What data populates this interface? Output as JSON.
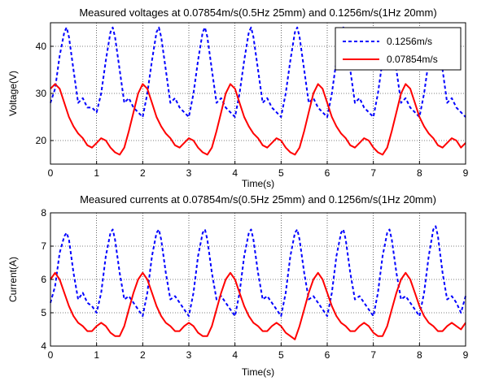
{
  "chart_data": [
    {
      "type": "line",
      "title": "Measured voltages at 0.07854m/s(0.5Hz 25mm) and 0.1256m/s(1Hz 20mm)",
      "xlabel": "Time(s)",
      "ylabel": "Voltage(V)",
      "xlim": [
        0,
        9
      ],
      "ylim": [
        15,
        45
      ],
      "xticks": [
        "0",
        "1",
        "2",
        "3",
        "4",
        "5",
        "6",
        "7",
        "8",
        "9"
      ],
      "yticks": [
        "20",
        "30",
        "40"
      ],
      "grid": true,
      "legend_position": "top-right",
      "series": [
        {
          "name": "0.1256m/s",
          "color": "#0000ff",
          "style": "dashed",
          "x": [
            0,
            0.1,
            0.2,
            0.3,
            0.35,
            0.4,
            0.5,
            0.6,
            0.7,
            0.8,
            0.9,
            1.0,
            1.1,
            1.2,
            1.3,
            1.35,
            1.4,
            1.5,
            1.6,
            1.7,
            1.8,
            1.9,
            2.0,
            2.1,
            2.2,
            2.3,
            2.35,
            2.4,
            2.5,
            2.6,
            2.7,
            2.8,
            2.9,
            3.0,
            3.1,
            3.2,
            3.3,
            3.35,
            3.4,
            3.5,
            3.6,
            3.7,
            3.8,
            3.9,
            4.0,
            4.1,
            4.2,
            4.3,
            4.35,
            4.4,
            4.5,
            4.6,
            4.7,
            4.8,
            4.9,
            5.0,
            5.1,
            5.2,
            5.3,
            5.35,
            5.4,
            5.5,
            5.6,
            5.7,
            5.8,
            5.9,
            6.0,
            6.1,
            6.2,
            6.3,
            6.35,
            6.4,
            6.5,
            6.6,
            6.7,
            6.8,
            6.9,
            7.0,
            7.1,
            7.2,
            7.3,
            7.35,
            7.4,
            7.5,
            7.6,
            7.7,
            7.8,
            7.9,
            8.0,
            8.1,
            8.2,
            8.3,
            8.35,
            8.4,
            8.5,
            8.6,
            8.7,
            8.8,
            8.9,
            9.0
          ],
          "y": [
            28,
            31,
            38,
            43,
            44,
            42,
            35,
            28,
            29,
            27,
            27,
            26,
            30,
            37,
            43,
            44,
            42,
            35,
            28,
            29,
            27,
            26,
            25,
            30,
            37,
            43,
            44,
            42,
            35,
            28,
            29,
            27,
            26,
            25,
            30,
            37,
            43,
            44,
            42,
            35,
            28,
            29,
            27,
            26,
            25,
            30,
            37,
            43,
            44,
            42,
            35,
            28,
            29,
            27,
            26,
            25,
            30,
            37,
            43,
            44,
            42,
            35,
            28,
            29,
            27,
            26,
            25,
            30,
            37,
            43,
            44,
            42,
            35,
            28,
            29,
            27,
            26,
            25,
            30,
            37,
            43,
            44,
            42,
            35,
            28,
            29,
            27,
            26,
            25,
            30,
            37,
            43,
            44,
            42,
            35,
            28,
            29,
            27,
            26,
            25
          ]
        },
        {
          "name": "0.07854m/s",
          "color": "#ff0000",
          "style": "solid",
          "x": [
            0,
            0.1,
            0.2,
            0.3,
            0.4,
            0.5,
            0.6,
            0.7,
            0.8,
            0.9,
            1.0,
            1.1,
            1.2,
            1.3,
            1.4,
            1.5,
            1.6,
            1.7,
            1.8,
            1.9,
            2.0,
            2.1,
            2.2,
            2.3,
            2.4,
            2.5,
            2.6,
            2.7,
            2.8,
            2.9,
            3.0,
            3.1,
            3.2,
            3.3,
            3.4,
            3.5,
            3.6,
            3.7,
            3.8,
            3.9,
            4.0,
            4.1,
            4.2,
            4.3,
            4.4,
            4.5,
            4.6,
            4.7,
            4.8,
            4.9,
            5.0,
            5.1,
            5.2,
            5.3,
            5.4,
            5.5,
            5.6,
            5.7,
            5.8,
            5.9,
            6.0,
            6.1,
            6.2,
            6.3,
            6.4,
            6.5,
            6.6,
            6.7,
            6.8,
            6.9,
            7.0,
            7.1,
            7.2,
            7.3,
            7.4,
            7.5,
            7.6,
            7.7,
            7.8,
            7.9,
            8.0,
            8.1,
            8.2,
            8.3,
            8.4,
            8.5,
            8.6,
            8.7,
            8.8,
            8.9,
            9.0
          ],
          "y": [
            31,
            32,
            31,
            28,
            25,
            23,
            21.5,
            20.5,
            19,
            18.5,
            19.5,
            20.5,
            20,
            18.5,
            17.5,
            17,
            18.5,
            22,
            26,
            30,
            32,
            31,
            28,
            25,
            23,
            21.5,
            20.5,
            19,
            18.5,
            19.5,
            20.5,
            20,
            18.5,
            17.5,
            17,
            18.5,
            22,
            26,
            30,
            32,
            31,
            28,
            25,
            23,
            21.5,
            20.5,
            19,
            18.5,
            19.5,
            20.5,
            20,
            18.5,
            17.5,
            17,
            18.5,
            22,
            26,
            30,
            32,
            31,
            28,
            25,
            23,
            21.5,
            20.5,
            19,
            18.5,
            19.5,
            20.5,
            20,
            18.5,
            17.5,
            17,
            18.5,
            22,
            26,
            30,
            32,
            31,
            28,
            25,
            23,
            21.5,
            20.5,
            19,
            18.5,
            19.5,
            20.5,
            20,
            18.5,
            19.5
          ]
        }
      ]
    },
    {
      "type": "line",
      "title": "Measured currents at 0.07854m/s(0.5Hz 25mm) and 0.1256m/s(1Hz 20mm)",
      "xlabel": "Time(s)",
      "ylabel": "Current(A)",
      "xlim": [
        0,
        9
      ],
      "ylim": [
        4,
        8
      ],
      "xticks": [
        "0",
        "1",
        "2",
        "3",
        "4",
        "5",
        "6",
        "7",
        "8",
        "9"
      ],
      "yticks": [
        "4",
        "5",
        "6",
        "7",
        "8"
      ],
      "grid": true,
      "series": [
        {
          "name": "0.1256m/s",
          "color": "#0000ff",
          "style": "dashed",
          "x": [
            0,
            0.1,
            0.2,
            0.3,
            0.35,
            0.4,
            0.5,
            0.6,
            0.7,
            0.8,
            0.9,
            1.0,
            1.1,
            1.2,
            1.3,
            1.35,
            1.4,
            1.5,
            1.6,
            1.7,
            1.8,
            1.9,
            2.0,
            2.1,
            2.2,
            2.3,
            2.35,
            2.4,
            2.5,
            2.6,
            2.7,
            2.8,
            2.9,
            3.0,
            3.1,
            3.2,
            3.3,
            3.35,
            3.4,
            3.5,
            3.6,
            3.7,
            3.8,
            3.9,
            4.0,
            4.1,
            4.2,
            4.3,
            4.35,
            4.4,
            4.5,
            4.6,
            4.7,
            4.8,
            4.9,
            5.0,
            5.1,
            5.2,
            5.3,
            5.35,
            5.4,
            5.5,
            5.6,
            5.7,
            5.8,
            5.9,
            6.0,
            6.1,
            6.2,
            6.3,
            6.35,
            6.4,
            6.5,
            6.6,
            6.7,
            6.8,
            6.9,
            7.0,
            7.1,
            7.2,
            7.3,
            7.35,
            7.4,
            7.5,
            7.6,
            7.7,
            7.8,
            7.9,
            8.0,
            8.1,
            8.2,
            8.3,
            8.35,
            8.4,
            8.5,
            8.6,
            8.7,
            8.8,
            8.9,
            9.0
          ],
          "y": [
            5.3,
            5.8,
            6.8,
            7.3,
            7.4,
            7.2,
            6.2,
            5.4,
            5.6,
            5.3,
            5.2,
            5.0,
            5.6,
            6.7,
            7.4,
            7.5,
            7.2,
            6.2,
            5.4,
            5.5,
            5.3,
            5.1,
            4.9,
            5.6,
            6.7,
            7.4,
            7.5,
            7.2,
            6.2,
            5.4,
            5.5,
            5.3,
            5.1,
            4.9,
            5.6,
            6.7,
            7.4,
            7.5,
            7.2,
            6.2,
            5.4,
            5.5,
            5.3,
            5.1,
            4.9,
            5.6,
            6.7,
            7.4,
            7.5,
            7.2,
            6.2,
            5.4,
            5.5,
            5.3,
            5.1,
            4.9,
            5.6,
            6.7,
            7.4,
            7.5,
            7.2,
            6.2,
            5.4,
            5.5,
            5.3,
            5.1,
            4.9,
            5.6,
            6.7,
            7.4,
            7.5,
            7.2,
            6.2,
            5.4,
            5.5,
            5.3,
            5.1,
            4.9,
            5.6,
            6.7,
            7.4,
            7.5,
            7.2,
            6.2,
            5.4,
            5.5,
            5.3,
            5.1,
            4.9,
            5.6,
            6.7,
            7.5,
            7.6,
            7.3,
            6.2,
            5.4,
            5.5,
            5.3,
            5.0,
            5.5
          ]
        },
        {
          "name": "0.07854m/s",
          "color": "#ff0000",
          "style": "solid",
          "x": [
            0,
            0.1,
            0.2,
            0.3,
            0.4,
            0.5,
            0.6,
            0.7,
            0.8,
            0.9,
            1.0,
            1.1,
            1.2,
            1.3,
            1.4,
            1.5,
            1.6,
            1.7,
            1.8,
            1.9,
            2.0,
            2.1,
            2.2,
            2.3,
            2.4,
            2.5,
            2.6,
            2.7,
            2.8,
            2.9,
            3.0,
            3.1,
            3.2,
            3.3,
            3.4,
            3.5,
            3.6,
            3.7,
            3.8,
            3.9,
            4.0,
            4.1,
            4.2,
            4.3,
            4.4,
            4.5,
            4.6,
            4.7,
            4.8,
            4.9,
            5.0,
            5.1,
            5.2,
            5.3,
            5.4,
            5.5,
            5.6,
            5.7,
            5.8,
            5.9,
            6.0,
            6.1,
            6.2,
            6.3,
            6.4,
            6.5,
            6.6,
            6.7,
            6.8,
            6.9,
            7.0,
            7.1,
            7.2,
            7.3,
            7.4,
            7.5,
            7.6,
            7.7,
            7.8,
            7.9,
            8.0,
            8.1,
            8.2,
            8.3,
            8.4,
            8.5,
            8.6,
            8.7,
            8.8,
            8.9,
            9.0
          ],
          "y": [
            6.0,
            6.2,
            6.0,
            5.6,
            5.2,
            4.9,
            4.7,
            4.6,
            4.45,
            4.45,
            4.6,
            4.7,
            4.6,
            4.4,
            4.3,
            4.3,
            4.6,
            5.1,
            5.6,
            6.0,
            6.2,
            6.0,
            5.6,
            5.2,
            4.9,
            4.7,
            4.6,
            4.45,
            4.45,
            4.6,
            4.7,
            4.6,
            4.4,
            4.3,
            4.3,
            4.6,
            5.1,
            5.6,
            6.0,
            6.2,
            6.0,
            5.6,
            5.2,
            4.9,
            4.7,
            4.6,
            4.45,
            4.45,
            4.6,
            4.7,
            4.6,
            4.4,
            4.3,
            4.2,
            4.6,
            5.1,
            5.6,
            6.0,
            6.2,
            6.0,
            5.6,
            5.2,
            4.9,
            4.7,
            4.6,
            4.45,
            4.45,
            4.6,
            4.7,
            4.6,
            4.4,
            4.3,
            4.3,
            4.6,
            5.1,
            5.6,
            6.0,
            6.2,
            6.0,
            5.6,
            5.2,
            4.9,
            4.7,
            4.6,
            4.45,
            4.45,
            4.6,
            4.7,
            4.6,
            4.5,
            4.7
          ]
        }
      ]
    }
  ]
}
